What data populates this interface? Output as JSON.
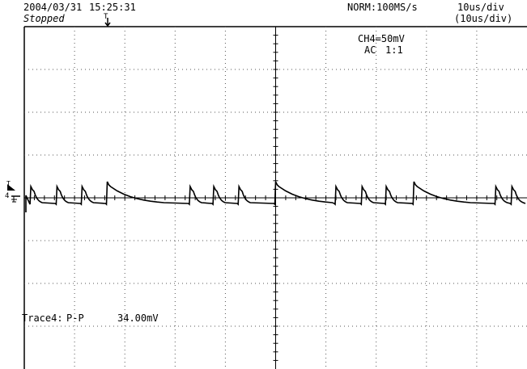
{
  "header": {
    "date": "2004/03/31",
    "time": "15:25:31",
    "state": "Stopped",
    "trigger_marker": "T",
    "acquisition_mode": "NORM:100MS/s",
    "timebase": "10us/div",
    "timebase_secondary": "(10us/div)"
  },
  "channel": {
    "scale": "CH4=50mV",
    "coupling": "AC",
    "probe": "1:1",
    "ground_marker": "4",
    "trigger_level_marker": "T"
  },
  "measurement": {
    "label": "Trace4:",
    "type": "P-P",
    "value": "34.00mV"
  },
  "graticule": {
    "x_divisions": 10,
    "y_divisions": 8,
    "grid": "dotted"
  },
  "waveform": {
    "name": "CH4",
    "units_x": "us",
    "units_y": "mV",
    "x_range": [
      -50,
      50
    ],
    "y_range": [
      -200,
      200
    ],
    "color": "#000000",
    "events": [
      {
        "t": -48.7,
        "kind": "small"
      },
      {
        "t": -43.5,
        "kind": "small"
      },
      {
        "t": -38.5,
        "kind": "small"
      },
      {
        "t": -33.5,
        "kind": "large"
      },
      {
        "t": -17.0,
        "kind": "small"
      },
      {
        "t": -12.3,
        "kind": "small"
      },
      {
        "t": -7.3,
        "kind": "small"
      },
      {
        "t": 0.0,
        "kind": "large"
      },
      {
        "t": 12.0,
        "kind": "small"
      },
      {
        "t": 17.2,
        "kind": "small"
      },
      {
        "t": 22.0,
        "kind": "small"
      },
      {
        "t": 27.5,
        "kind": "large"
      },
      {
        "t": 43.8,
        "kind": "small"
      },
      {
        "t": 47.0,
        "kind": "small"
      }
    ]
  }
}
